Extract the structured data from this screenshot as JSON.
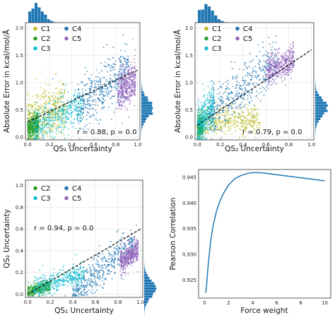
{
  "colors": {
    "C1": "#bcbd22",
    "C2": "#2ca02c",
    "C3": "#17becf",
    "C4": "#1f77b4",
    "C5": "#9467bd",
    "hist": "#1f77b4",
    "fit": "#111111"
  },
  "chart_data": [
    {
      "type": "scatter",
      "xlabel": "QS₁ Uncertainty",
      "ylabel": "Absolute Error in kcal/mol/Å",
      "xlim": [
        -0.02,
        1.02
      ],
      "ylim": [
        -0.05,
        2.1
      ],
      "xticks": [
        "0.0",
        "0.2",
        "0.4",
        "0.6",
        "0.8",
        "1.0"
      ],
      "yticks": [
        "0.0",
        "0.5",
        "1.0",
        "1.5",
        "2.0"
      ],
      "xtick_values": [
        0,
        0.2,
        0.4,
        0.6,
        0.8,
        1.0
      ],
      "ytick_values": [
        0,
        0.5,
        1.0,
        1.5,
        2.0
      ],
      "legend": [
        "C1",
        "C2",
        "C3",
        "C4",
        "C5"
      ],
      "legend_position": "upper-left",
      "annotation": "r = 0.88, p = 0.0",
      "grid": true,
      "marginal_histograms": [
        "top",
        "right"
      ],
      "fit_line": {
        "x": [
          0.0,
          1.0
        ],
        "y": [
          0.28,
          1.23
        ]
      },
      "series": [
        {
          "name": "C1",
          "x_range": [
            0.0,
            0.35
          ],
          "y_center": 0.45,
          "y_spread": 0.25,
          "trend": 0.7
        },
        {
          "name": "C2",
          "x_range": [
            0.0,
            0.1
          ],
          "y_center": 0.2,
          "y_spread": 0.12,
          "trend": 0.8
        },
        {
          "name": "C3",
          "x_range": [
            0.05,
            0.5
          ],
          "y_center": 0.4,
          "y_spread": 0.18,
          "trend": 0.9
        },
        {
          "name": "C4",
          "x_range": [
            0.45,
            0.92
          ],
          "y_center": 0.9,
          "y_spread": 0.25,
          "trend": 1.6
        },
        {
          "name": "C5",
          "x_range": [
            0.82,
            0.98
          ],
          "y_center": 0.95,
          "y_spread": 0.2,
          "trend": 1.2
        }
      ]
    },
    {
      "type": "scatter",
      "xlabel": "QS₂ Uncertainty",
      "ylabel": "Absolute Error in kcal/mol/Å",
      "xlim": [
        -0.02,
        1.02
      ],
      "ylim": [
        -0.05,
        2.1
      ],
      "xticks": [
        "0.0",
        "0.2",
        "0.4",
        "0.6",
        "0.8",
        "1.0"
      ],
      "yticks": [
        "0.0",
        "0.5",
        "1.0",
        "1.5",
        "2.0"
      ],
      "xtick_values": [
        0,
        0.2,
        0.4,
        0.6,
        0.8,
        1.0
      ],
      "ytick_values": [
        0,
        0.5,
        1.0,
        1.5,
        2.0
      ],
      "legend": [
        "C1",
        "C2",
        "C3",
        "C4",
        "C5"
      ],
      "legend_position": "upper-left",
      "annotation": "r = 0.79, p = 0.0",
      "grid": true,
      "marginal_histograms": [
        "top",
        "right"
      ],
      "fit_line": {
        "x": [
          0.0,
          1.0
        ],
        "y": [
          0.22,
          1.6
        ]
      },
      "series": [
        {
          "name": "C1",
          "x_range": [
            0.0,
            0.55
          ],
          "y_center": 0.3,
          "y_spread": 0.15,
          "trend": 0.2
        },
        {
          "name": "C2",
          "x_range": [
            0.0,
            0.05
          ],
          "y_center": 0.2,
          "y_spread": 0.1,
          "trend": 0.8
        },
        {
          "name": "C3",
          "x_range": [
            0.0,
            0.15
          ],
          "y_center": 0.4,
          "y_spread": 0.2,
          "trend": 2.5
        },
        {
          "name": "C4",
          "x_range": [
            0.1,
            0.7
          ],
          "y_center": 0.9,
          "y_spread": 0.25,
          "trend": 1.6
        },
        {
          "name": "C5",
          "x_range": [
            0.6,
            0.85
          ],
          "y_center": 1.3,
          "y_spread": 0.15,
          "trend": 0.8
        }
      ]
    },
    {
      "type": "scatter",
      "xlabel": "QS₁ Uncertainty",
      "ylabel": "QS₂ Uncertainty",
      "xlim": [
        -0.02,
        1.02
      ],
      "ylim": [
        -0.03,
        1.05
      ],
      "xticks": [
        "0.0",
        "0.2",
        "0.4",
        "0.6",
        "0.8",
        "1.0"
      ],
      "yticks": [
        "0.0",
        "0.2",
        "0.4",
        "0.6",
        "0.8",
        "1.0"
      ],
      "xtick_values": [
        0,
        0.2,
        0.4,
        0.6,
        0.8,
        1.0
      ],
      "ytick_values": [
        0,
        0.2,
        0.4,
        0.6,
        0.8,
        1.0
      ],
      "legend": [
        "C2",
        "C3",
        "C4",
        "C5"
      ],
      "legend_position": "upper-left",
      "annotation": "r = 0.94, p = 0.0",
      "grid": true,
      "marginal_histograms": [
        "right"
      ],
      "fit_line": {
        "x": [
          0.0,
          1.0
        ],
        "y": [
          0.0,
          0.6
        ]
      },
      "series": [
        {
          "name": "C2",
          "x_range": [
            0.0,
            0.2
          ],
          "y_center": 0.05,
          "y_spread": 0.03,
          "trend": 0.3
        },
        {
          "name": "C3",
          "x_range": [
            0.05,
            0.5
          ],
          "y_center": 0.12,
          "y_spread": 0.05,
          "trend": 0.3
        },
        {
          "name": "C4",
          "x_range": [
            0.4,
            0.95
          ],
          "y_center": 0.25,
          "y_spread": 0.08,
          "trend": 0.9
        },
        {
          "name": "C5",
          "x_range": [
            0.82,
            0.98
          ],
          "y_center": 0.35,
          "y_spread": 0.06,
          "trend": 0.7
        }
      ]
    },
    {
      "type": "line",
      "xlabel": "Force weight",
      "ylabel": "Pearson Correlation",
      "xlim": [
        -0.5,
        10.5
      ],
      "ylim": [
        0.9215,
        0.9465
      ],
      "xticks": [
        "0",
        "2",
        "4",
        "6",
        "8",
        "10"
      ],
      "yticks": [
        "0.925",
        "0.930",
        "0.935",
        "0.940",
        "0.945"
      ],
      "xtick_values": [
        0,
        2,
        4,
        6,
        8,
        10
      ],
      "ytick_values": [
        0.925,
        0.93,
        0.935,
        0.94,
        0.945
      ],
      "grid": false,
      "series": [
        {
          "x": [
            0.1,
            0.2,
            0.3,
            0.5,
            0.7,
            1.0,
            1.3,
            1.6,
            2.0,
            2.5,
            3.0,
            3.5,
            4.0,
            4.5,
            5.0,
            6.0,
            7.0,
            8.0,
            9.0,
            10.0
          ],
          "values": [
            0.9225,
            0.925,
            0.928,
            0.9325,
            0.9355,
            0.9385,
            0.9405,
            0.942,
            0.9435,
            0.9447,
            0.9453,
            0.9457,
            0.9459,
            0.9459,
            0.9458,
            0.9455,
            0.9452,
            0.9449,
            0.9446,
            0.9443
          ]
        }
      ]
    }
  ]
}
